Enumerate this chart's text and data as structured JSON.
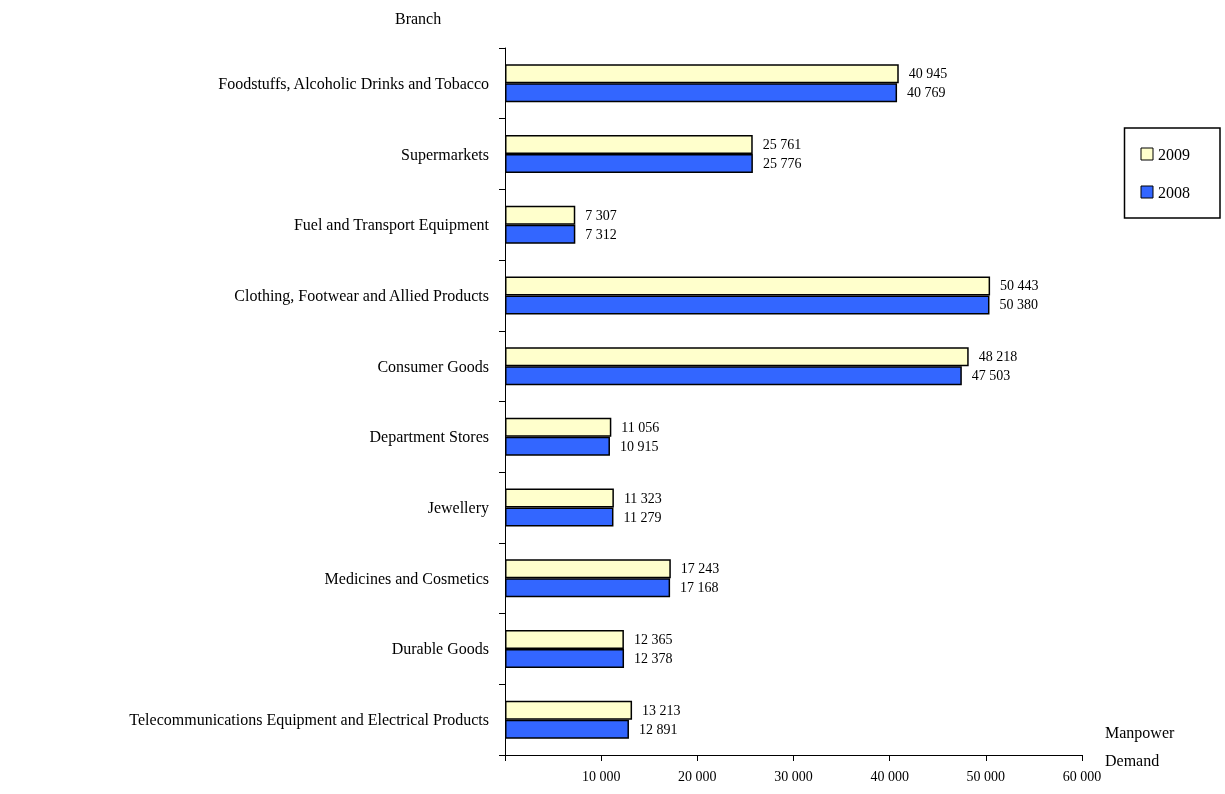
{
  "chart_data": {
    "type": "bar",
    "orientation": "horizontal",
    "xlabel": "Manpower Demand",
    "ylabel": "Branch",
    "categories": [
      "Foodstuffs, Alcoholic Drinks and Tobacco",
      "Supermarkets",
      "Fuel and Transport Equipment",
      "Clothing, Footwear and Allied Products",
      "Consumer Goods",
      "Department Stores",
      "Jewellery",
      "Medicines and Cosmetics",
      "Durable Goods",
      "Telecommunications Equipment and Electrical Products"
    ],
    "series": [
      {
        "name": "2009",
        "color": "#ffffcc",
        "values": [
          40945,
          25761,
          7307,
          50443,
          48218,
          11056,
          11323,
          17243,
          12365,
          13213
        ],
        "value_labels": [
          "40 945",
          "25 761",
          "7 307",
          "50 443",
          "48 218",
          "11 056",
          "11 323",
          "17 243",
          "12 365",
          "13 213"
        ]
      },
      {
        "name": "2008",
        "color": "#3366ff",
        "values": [
          40769,
          25776,
          7312,
          50380,
          47503,
          10915,
          11279,
          17168,
          12378,
          12891
        ],
        "value_labels": [
          "40 769",
          "25 776",
          "7 312",
          "50 380",
          "47 503",
          "10 915",
          "11 279",
          "17 168",
          "12 378",
          "12 891"
        ]
      }
    ],
    "xlim": [
      0,
      60000
    ],
    "xticks": [
      {
        "value": 0,
        "label": null
      },
      {
        "value": 10000,
        "label": "10 000"
      },
      {
        "value": 20000,
        "label": "20 000"
      },
      {
        "value": 30000,
        "label": "30 000"
      },
      {
        "value": 40000,
        "label": "40 000"
      },
      {
        "value": 50000,
        "label": "50 000"
      },
      {
        "value": 60000,
        "label": "60 000"
      }
    ],
    "legend": "right",
    "grid": false
  }
}
